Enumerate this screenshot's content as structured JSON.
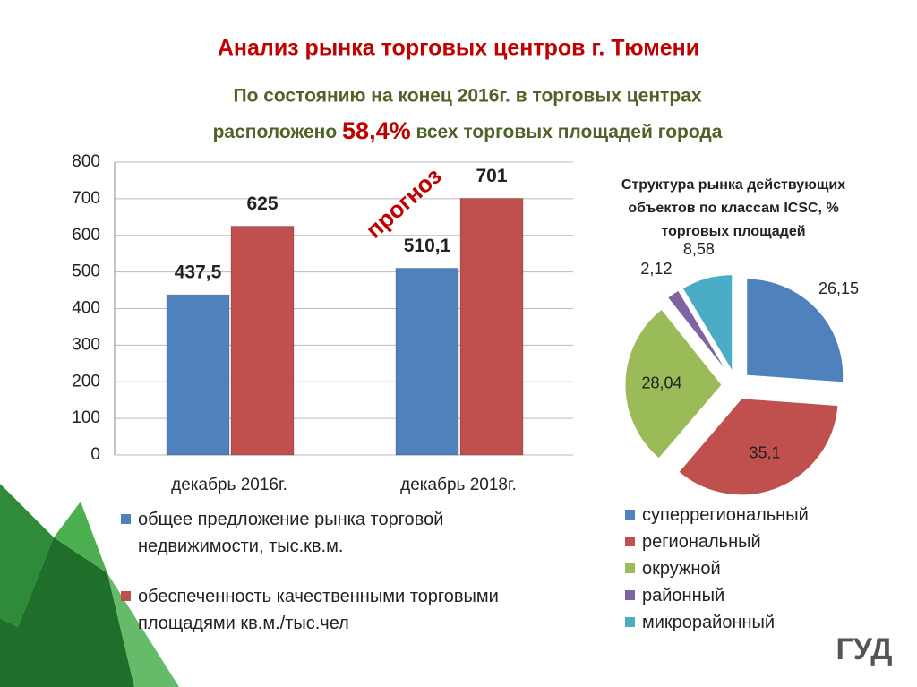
{
  "title": "Анализ рынка торговых центров г. Тюмени",
  "subtitle": [
    "По состоянию на конец 2016г. в торговых центрах",
    "расположено"
  ],
  "highlight": "58,4%",
  "subtitle_end": "всех торговых площадей города",
  "logo": "ГУД",
  "chart_data": [
    {
      "type": "bar",
      "categories": [
        "декабрь 2016г.",
        "декабрь 2018г."
      ],
      "series": [
        {
          "name": "общее предложение рынка торговой недвижимости, тыс.кв.м.",
          "color": "#4f81bd",
          "values": [
            437.5,
            510.1
          ],
          "value_labels": [
            "437,5",
            "510,1"
          ]
        },
        {
          "name": "обеспеченность качественными торговыми площадями кв.м./тыс.чел",
          "color": "#c0504d",
          "values": [
            625,
            701
          ]
        }
      ],
      "annotation": "прогноз",
      "ylim": [
        0,
        800
      ],
      "yticks": [
        0,
        100,
        200,
        300,
        400,
        500,
        600,
        700,
        800
      ],
      "grid": true
    },
    {
      "type": "pie",
      "title": "Структура рынка действующих объектов по классам ICSC, % торговых площадей",
      "categories": [
        "суперрегиональный",
        "региональный",
        "окружной",
        "районный",
        "микрорайонный"
      ],
      "values": [
        26.15,
        35.1,
        28.04,
        2.12,
        8.58
      ],
      "value_labels": [
        "26,15",
        "35,1",
        "28,04",
        "2,12",
        "8,58"
      ],
      "colors": [
        "#4f81bd",
        "#c0504d",
        "#9bbb59",
        "#8064a2",
        "#4bacc6"
      ]
    }
  ]
}
